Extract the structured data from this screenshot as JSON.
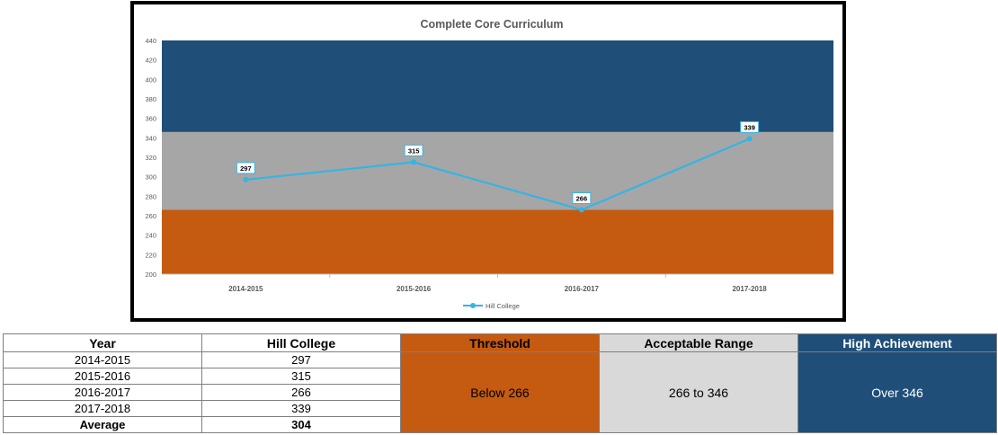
{
  "chart_data": {
    "type": "line",
    "title": "Complete Core Curriculum",
    "categories": [
      "2014-2015",
      "2015-2016",
      "2016-2017",
      "2017-2018"
    ],
    "series": [
      {
        "name": "Hill College",
        "values": [
          297,
          315,
          266,
          339
        ],
        "color": "#33b5e5"
      }
    ],
    "ylim": [
      200,
      440
    ],
    "yticks": [
      200,
      220,
      240,
      260,
      280,
      300,
      320,
      340,
      360,
      380,
      400,
      420,
      440
    ],
    "bands": [
      {
        "from": 200,
        "to": 266,
        "color": "#c55a11"
      },
      {
        "from": 266,
        "to": 346,
        "color": "#a6a6a6"
      },
      {
        "from": 346,
        "to": 440,
        "color": "#1f4e79"
      }
    ],
    "legend_position": "bottom",
    "data_labels": true
  },
  "table": {
    "headers": {
      "year": "Year",
      "college": "Hill College",
      "threshold": "Threshold",
      "acceptable": "Acceptable Range",
      "high": "High Achievement"
    },
    "rows": [
      {
        "year": "2014-2015",
        "value": "297"
      },
      {
        "year": "2015-2016",
        "value": "315"
      },
      {
        "year": "2016-2017",
        "value": "266"
      },
      {
        "year": "2017-2018",
        "value": "339"
      }
    ],
    "average": {
      "label": "Average",
      "value": "304"
    },
    "threshold_text": "Below 266",
    "acceptable_text": "266 to 346",
    "high_text": "Over 346"
  }
}
